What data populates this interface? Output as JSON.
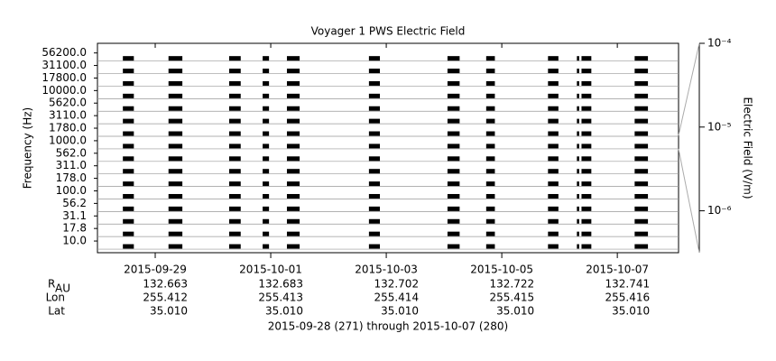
{
  "chart_data": {
    "type": "spectrum",
    "title": "Voyager 1 PWS Electric Field",
    "subtitle": "2015-09-28 (271) through 2015-10-07 (280)",
    "ylabel": "Frequency (Hz)",
    "y2label": "Electric Field (V/m)",
    "channels": [
      "56200.0",
      "31100.0",
      "17800.0",
      "10000.0",
      "5620.0",
      "3110.0",
      "1780.0",
      "1000.0",
      "562.0",
      "311.0",
      "178.0",
      "100.0",
      "56.2",
      "31.1",
      "17.8",
      "10.0"
    ],
    "xlim": [
      271,
      281.06
    ],
    "xticks": [
      {
        "value": 272,
        "label": "2015-09-29"
      },
      {
        "value": 274,
        "label": "2015-10-01"
      },
      {
        "value": 276,
        "label": "2015-10-03"
      },
      {
        "value": 278,
        "label": "2015-10-05"
      },
      {
        "value": 280,
        "label": "2015-10-07"
      }
    ],
    "intervals": [
      [
        271.44,
        271.63
      ],
      [
        272.23,
        272.47
      ],
      [
        273.28,
        273.48
      ],
      [
        273.86,
        273.97
      ],
      [
        274.28,
        274.5
      ],
      [
        275.7,
        275.89
      ],
      [
        277.06,
        277.27
      ],
      [
        277.73,
        277.88
      ],
      [
        278.8,
        278.98
      ],
      [
        279.3,
        279.34
      ],
      [
        279.38,
        279.55
      ],
      [
        280.3,
        280.53
      ]
    ],
    "color": "#000000",
    "y2scale": "log",
    "y2lim": [
      3.16e-07,
      0.0001
    ],
    "y2ticks": [
      {
        "value": 0.0001,
        "label": "10⁻⁴"
      },
      {
        "value": 1e-05,
        "label": "10⁻⁵"
      },
      {
        "value": 1e-06,
        "label": "10⁻⁶"
      }
    ],
    "ephemeris": [
      {
        "label": "R",
        "sub": "AU",
        "values": [
          "132.663",
          "132.683",
          "132.702",
          "132.722",
          "132.741"
        ]
      },
      {
        "label": "Lon",
        "values": [
          "255.412",
          "255.413",
          "255.414",
          "255.415",
          "255.416"
        ]
      },
      {
        "label": "Lat",
        "values": [
          "35.010",
          "35.010",
          "35.010",
          "35.010",
          "35.010"
        ]
      }
    ]
  }
}
